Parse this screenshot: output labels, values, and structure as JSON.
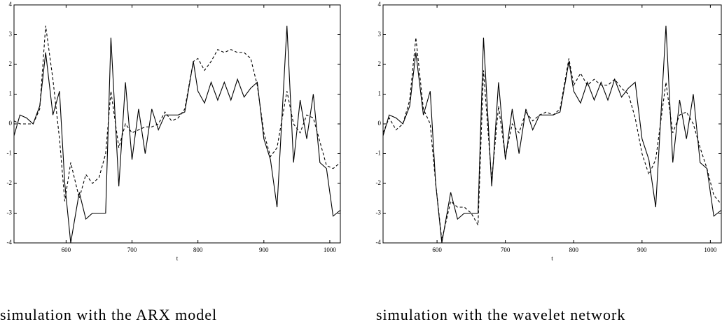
{
  "chart_data": [
    {
      "type": "line",
      "caption": "simulation with the ARX model",
      "xlabel": "t",
      "xlim": [
        521,
        1016
      ],
      "ylim": [
        -4,
        4
      ],
      "xticks": [
        600,
        700,
        800,
        900,
        1000
      ],
      "yticks": [
        -4,
        -3,
        -2,
        -1,
        0,
        1,
        2,
        3,
        4
      ],
      "x": [
        521,
        530,
        540,
        550,
        560,
        569,
        580,
        590,
        598,
        607,
        620,
        630,
        640,
        650,
        660,
        668,
        680,
        690,
        700,
        710,
        720,
        730,
        740,
        750,
        760,
        770,
        780,
        793,
        800,
        810,
        820,
        830,
        840,
        850,
        860,
        870,
        880,
        890,
        900,
        910,
        920,
        935,
        945,
        955,
        965,
        975,
        985,
        995,
        1005,
        1016
      ],
      "series": [
        {
          "color": "#000000",
          "dashed": false,
          "values": [
            -0.4,
            0.3,
            0.2,
            0.0,
            0.6,
            2.4,
            0.3,
            1.1,
            -2.0,
            -4.0,
            -2.3,
            -3.2,
            -3.0,
            -3.0,
            -3.0,
            2.9,
            -2.1,
            1.4,
            -1.2,
            0.5,
            -1.0,
            0.5,
            -0.2,
            0.3,
            0.3,
            0.3,
            0.4,
            2.1,
            1.1,
            0.7,
            1.4,
            0.8,
            1.4,
            0.8,
            1.5,
            0.9,
            1.2,
            1.4,
            -0.5,
            -1.2,
            -2.8,
            3.3,
            -1.3,
            0.8,
            -0.5,
            1.0,
            -1.3,
            -1.5,
            -3.1,
            -2.9
          ]
        },
        {
          "color": "#000000",
          "dashed": true,
          "values": [
            0.1,
            0.0,
            0.0,
            0.0,
            0.5,
            3.3,
            1.5,
            -0.5,
            -2.6,
            -1.3,
            -2.5,
            -1.7,
            -2.0,
            -1.8,
            -1.0,
            1.1,
            -0.8,
            0.0,
            -0.3,
            -0.2,
            -0.1,
            -0.1,
            0.0,
            0.4,
            0.1,
            0.2,
            0.5,
            2.1,
            2.2,
            1.8,
            2.1,
            2.5,
            2.4,
            2.5,
            2.4,
            2.4,
            2.2,
            1.3,
            -0.3,
            -1.1,
            -0.8,
            1.1,
            0.0,
            -0.3,
            0.3,
            0.2,
            -0.6,
            -1.4,
            -1.5,
            -1.3
          ]
        }
      ]
    },
    {
      "type": "line",
      "caption": "simulation with the wavelet network",
      "xlabel": "t",
      "xlim": [
        521,
        1016
      ],
      "ylim": [
        -4,
        4
      ],
      "xticks": [
        600,
        700,
        800,
        900,
        1000
      ],
      "yticks": [
        -4,
        -3,
        -2,
        -1,
        0,
        1,
        2,
        3,
        4
      ],
      "x": [
        521,
        530,
        540,
        550,
        560,
        569,
        580,
        590,
        598,
        607,
        620,
        630,
        640,
        650,
        660,
        668,
        680,
        690,
        700,
        710,
        720,
        730,
        740,
        750,
        760,
        770,
        780,
        793,
        800,
        810,
        820,
        830,
        840,
        850,
        860,
        870,
        880,
        890,
        900,
        910,
        920,
        935,
        945,
        955,
        965,
        975,
        985,
        995,
        1005,
        1016
      ],
      "series": [
        {
          "color": "#000000",
          "dashed": false,
          "values": [
            -0.4,
            0.3,
            0.2,
            0.0,
            0.6,
            2.4,
            0.3,
            1.1,
            -2.0,
            -4.0,
            -2.3,
            -3.2,
            -3.0,
            -3.0,
            -3.0,
            2.9,
            -2.1,
            1.4,
            -1.2,
            0.5,
            -1.0,
            0.5,
            -0.2,
            0.3,
            0.3,
            0.3,
            0.4,
            2.1,
            1.1,
            0.7,
            1.4,
            0.8,
            1.4,
            0.8,
            1.5,
            0.9,
            1.2,
            1.4,
            -0.5,
            -1.2,
            -2.8,
            3.3,
            -1.3,
            0.8,
            -0.5,
            1.0,
            -1.3,
            -1.5,
            -3.1,
            -2.9
          ]
        },
        {
          "color": "#000000",
          "dashed": true,
          "values": [
            -0.3,
            0.2,
            -0.2,
            0.0,
            0.8,
            2.9,
            0.5,
            0.0,
            -2.0,
            -3.9,
            -2.6,
            -2.8,
            -2.8,
            -3.0,
            -3.4,
            1.8,
            -1.9,
            0.6,
            -1.1,
            0.0,
            -0.3,
            0.4,
            0.1,
            0.3,
            0.4,
            0.3,
            0.5,
            2.2,
            1.3,
            1.7,
            1.3,
            1.5,
            1.3,
            1.3,
            1.5,
            1.2,
            1.0,
            0.2,
            -1.0,
            -1.7,
            -1.2,
            1.4,
            -0.3,
            0.3,
            0.4,
            0.0,
            -0.8,
            -1.5,
            -2.4,
            -2.7
          ]
        }
      ]
    }
  ]
}
